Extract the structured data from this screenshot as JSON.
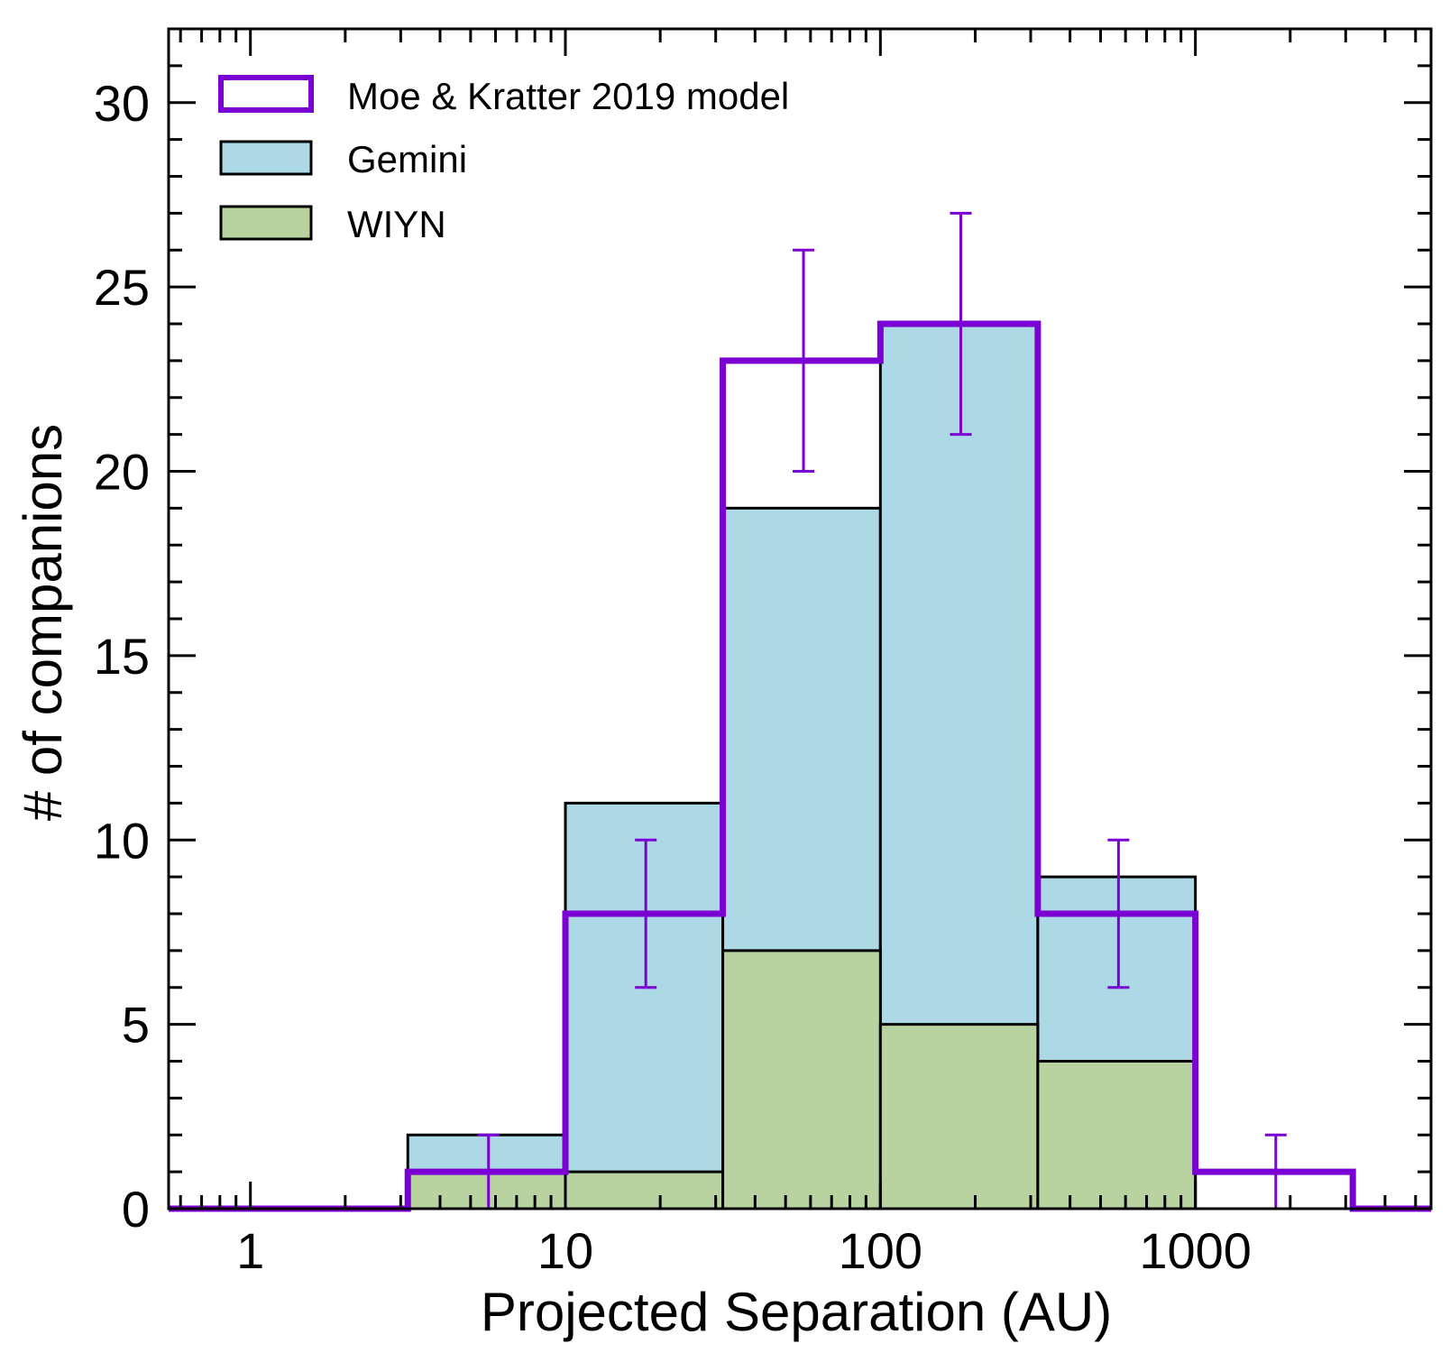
{
  "chart_data": {
    "type": "bar",
    "xlabel": "Projected Separation (AU)",
    "ylabel": "# of companions",
    "xscale": "log",
    "xlim": [
      0.55,
      5600
    ],
    "ylim": [
      0,
      32
    ],
    "x_tick_labels": [
      "1",
      "10",
      "100",
      "1000"
    ],
    "x_tick_values": [
      1,
      10,
      100,
      1000
    ],
    "y_tick_labels": [
      "0",
      "5",
      "10",
      "15",
      "20",
      "25",
      "30"
    ],
    "y_tick_values": [
      0,
      5,
      10,
      15,
      20,
      25,
      30
    ],
    "bin_edges": [
      0.316,
      1,
      3.16,
      10,
      31.6,
      100,
      316,
      1000,
      3160,
      10000
    ],
    "series": [
      {
        "name": "Gemini",
        "kind": "stacked-bar",
        "color": "#add8e6",
        "edge_color": "#000000",
        "values": [
          0,
          0,
          2,
          11,
          19,
          24,
          9,
          0,
          0
        ]
      },
      {
        "name": "WIYN",
        "kind": "stacked-bar",
        "color": "#b8d3a0",
        "edge_color": "#000000",
        "values": [
          0,
          0,
          1,
          1,
          7,
          5,
          4,
          0,
          0
        ]
      },
      {
        "name": "Moe & Kratter 2019 model",
        "kind": "step",
        "color": "#7b00d4",
        "values": [
          0,
          0,
          1,
          8,
          23,
          24,
          8,
          1,
          0
        ],
        "error_x": [
          5.7,
          18,
          57,
          180,
          570,
          1800
        ],
        "error_low": [
          0,
          6,
          20,
          21,
          6,
          0
        ],
        "error_high": [
          2,
          10,
          26,
          27,
          10,
          2
        ]
      }
    ],
    "legend": {
      "position": "top-left",
      "entries": [
        "Moe & Kratter 2019 model",
        "Gemini",
        "WIYN"
      ]
    },
    "grid": false,
    "ticks_on_all_sides": true
  }
}
